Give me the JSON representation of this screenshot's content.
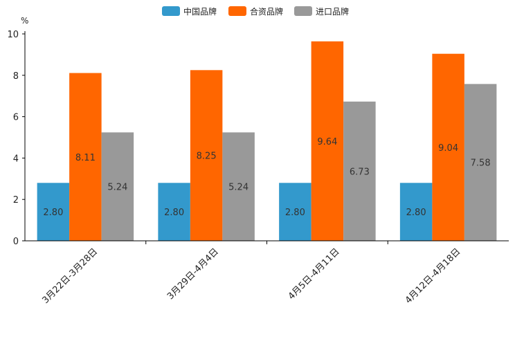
{
  "chart_data": {
    "type": "bar",
    "title": "",
    "xlabel": "",
    "ylabel": "%",
    "ylim": [
      0,
      10
    ],
    "yticks": [
      0,
      2,
      4,
      6,
      8,
      10
    ],
    "grid": false,
    "legend_position": "top-center",
    "categories": [
      "3月22日-3月28日",
      "3月29日-4月4日",
      "4月5日-4月11日",
      "4月12日-4月18日"
    ],
    "series": [
      {
        "name": "中国品牌",
        "color": "#3399cc",
        "values": [
          2.8,
          2.8,
          2.8,
          2.8
        ],
        "labels": [
          "2.80",
          "2.80",
          "2.80",
          "2.80"
        ]
      },
      {
        "name": "合资品牌",
        "color": "#ff6600",
        "values": [
          8.11,
          8.25,
          9.64,
          9.04
        ],
        "labels": [
          "8.11",
          "8.25",
          "9.64",
          "9.04"
        ]
      },
      {
        "name": "进口品牌",
        "color": "#999999",
        "values": [
          5.24,
          5.24,
          6.73,
          7.58
        ],
        "labels": [
          "5.24",
          "5.24",
          "6.73",
          "7.58"
        ]
      }
    ]
  }
}
